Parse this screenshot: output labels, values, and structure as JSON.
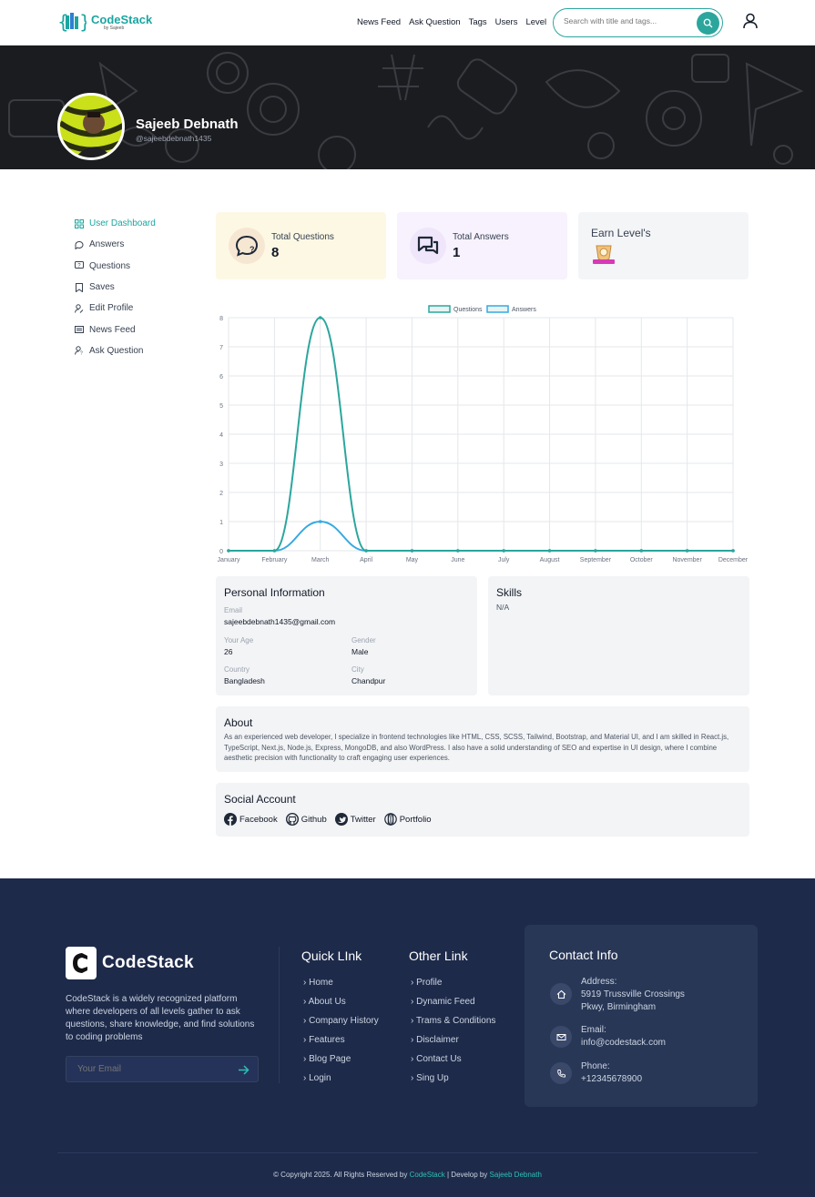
{
  "header": {
    "logo_text": "CodeStack",
    "logo_sub": "by Sajeeb",
    "nav": [
      "News Feed",
      "Ask Question",
      "Tags",
      "Users",
      "Level"
    ],
    "search_placeholder": "Search with title and tags...",
    "accent_color": "#2ba69d"
  },
  "profile": {
    "name": "Sajeeb Debnath",
    "handle": "@sajeebdebnath1435"
  },
  "sidebar": {
    "items": [
      {
        "label": "User Dashboard",
        "icon": "dashboard-icon",
        "active": true
      },
      {
        "label": "Answers",
        "icon": "chat-icon"
      },
      {
        "label": "Questions",
        "icon": "question-icon"
      },
      {
        "label": "Saves",
        "icon": "bookmark-icon"
      },
      {
        "label": "Edit Profile",
        "icon": "user-edit-icon"
      },
      {
        "label": "News Feed",
        "icon": "newspaper-icon"
      },
      {
        "label": "Ask Question",
        "icon": "user-question-icon"
      }
    ]
  },
  "stats": {
    "questions": {
      "label": "Total Questions",
      "value": "8",
      "color": "#fdf8e4"
    },
    "answers": {
      "label": "Total Answers",
      "value": "1",
      "color": "#f7f2fd"
    },
    "level": {
      "label": "Earn Level's"
    }
  },
  "chart_data": {
    "type": "line",
    "categories": [
      "January",
      "February",
      "March",
      "April",
      "May",
      "June",
      "July",
      "August",
      "September",
      "October",
      "November",
      "December"
    ],
    "series": [
      {
        "name": "Questions",
        "values": [
          0,
          0,
          8,
          0,
          0,
          0,
          0,
          0,
          0,
          0,
          0,
          0
        ],
        "color": "#2ba69d"
      },
      {
        "name": "Answers",
        "values": [
          0,
          0,
          1,
          0,
          0,
          0,
          0,
          0,
          0,
          0,
          0,
          0
        ],
        "color": "#36a9e1"
      }
    ],
    "ylim": [
      0,
      8
    ],
    "yticks": [
      "0",
      "1",
      "2",
      "3",
      "4",
      "5",
      "6",
      "7",
      "8"
    ],
    "grid": true,
    "legend": "top"
  },
  "personal": {
    "title": "Personal Information",
    "email_label": "Email",
    "email": "sajeebdebnath1435@gmail.com",
    "age_label": "Your Age",
    "age": "26",
    "gender_label": "Gender",
    "gender": "Male",
    "country_label": "Country",
    "country": "Bangladesh",
    "city_label": "City",
    "city": "Chandpur"
  },
  "skills": {
    "title": "Skills",
    "value": "N/A"
  },
  "about": {
    "title": "About",
    "text": "As an experienced web developer, I specialize in frontend technologies like HTML, CSS, SCSS, Tailwind, Bootstrap, and Material UI, and I am skilled in React.js, TypeScript, Next.js, Node.js, Express, MongoDB, and also WordPress. I also have a solid understanding of SEO and expertise in UI design, where I combine aesthetic precision with functionality to craft engaging user experiences."
  },
  "social": {
    "title": "Social Account",
    "links": [
      "Facebook",
      "Github",
      "Twitter",
      "Portfolio"
    ]
  },
  "footer": {
    "logo_text": "CodeStack",
    "description": "CodeStack is a widely recognized platform where developers of all levels gather to ask questions, share knowledge, and find solutions to coding problems",
    "email_placeholder": "Your Email",
    "quick_title": "Quick LInk",
    "quick_links": [
      "Home",
      "About Us",
      "Company History",
      "Features",
      "Blog Page",
      "Login"
    ],
    "other_title": "Other Link",
    "other_links": [
      "Profile",
      "Dynamic Feed",
      "Trams & Conditions",
      "Disclaimer",
      "Contact Us",
      "Sing Up"
    ],
    "contact_title": "Contact Info",
    "address_label": "Address:",
    "address_line1": "5919 Trussville Crossings",
    "address_line2": "Pkwy, Birmingham",
    "email_label": "Email:",
    "email": "info@codestack.com",
    "phone_label": "Phone:",
    "phone": "+12345678900",
    "copyright_prefix": "© Copyright 2025. All Rights Reserved by",
    "copyright_brand": "CodeStack",
    "copyright_sep": "| Develop by",
    "copyright_dev": "Sajeeb Debnath",
    "bg_color": "#1e2a4a"
  }
}
